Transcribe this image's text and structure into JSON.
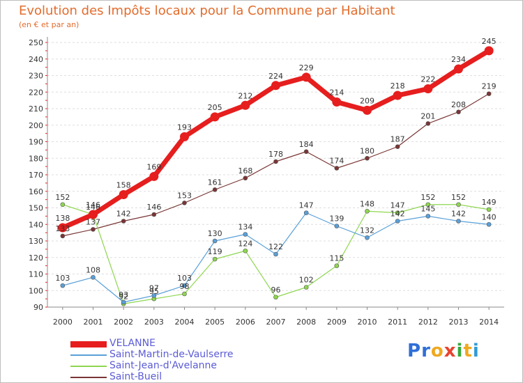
{
  "title": "Evolution des Impôts locaux pour la Commune par Habitant",
  "subtitle": "(en € et par an)",
  "logo": {
    "letters": [
      "P",
      "r",
      "o",
      "x",
      "i",
      "t",
      "i"
    ],
    "colors": [
      "#2f6fd8",
      "#2f6fd8",
      "#f0a81e",
      "#e8432e",
      "#38a83a",
      "#f0a81e",
      "#2f9bd8"
    ]
  },
  "chart_data": {
    "type": "line",
    "title": "Evolution des Impôts locaux pour la Commune par Habitant",
    "ylabel": "(en € et par an)",
    "x": [
      "2000",
      "2001",
      "2002",
      "2003",
      "2004",
      "2005",
      "2006",
      "2007",
      "2008",
      "2009",
      "2010",
      "2011",
      "2012",
      "2013",
      "2014"
    ],
    "ylim": [
      90,
      250
    ],
    "yticks": [
      90,
      100,
      110,
      120,
      130,
      140,
      150,
      160,
      170,
      180,
      190,
      200,
      210,
      220,
      230,
      240,
      250
    ],
    "grid": "horizontal-dashed",
    "legend": "bottom-left",
    "series": [
      {
        "name": "VELANNE",
        "color": "#e61e1e",
        "values": [
          138,
          146,
          158,
          169,
          193,
          205,
          212,
          224,
          229,
          214,
          209,
          218,
          222,
          234,
          245
        ]
      },
      {
        "name": "Saint-Martin-de-Vaulserre",
        "color": "#5aa0d8",
        "values": [
          103,
          108,
          93,
          97,
          103,
          130,
          134,
          122,
          147,
          139,
          132,
          142,
          145,
          142,
          140
        ]
      },
      {
        "name": "Saint-Jean-d'Avelanne",
        "color": "#8fd650",
        "values": [
          152,
          146,
          92,
          95,
          98,
          119,
          124,
          96,
          102,
          115,
          148,
          147,
          152,
          152,
          149
        ]
      },
      {
        "name": "Saint-Bueil",
        "color": "#7a3535",
        "values": [
          133,
          137,
          142,
          146,
          153,
          161,
          168,
          178,
          184,
          174,
          180,
          187,
          201,
          208,
          219
        ]
      }
    ]
  }
}
